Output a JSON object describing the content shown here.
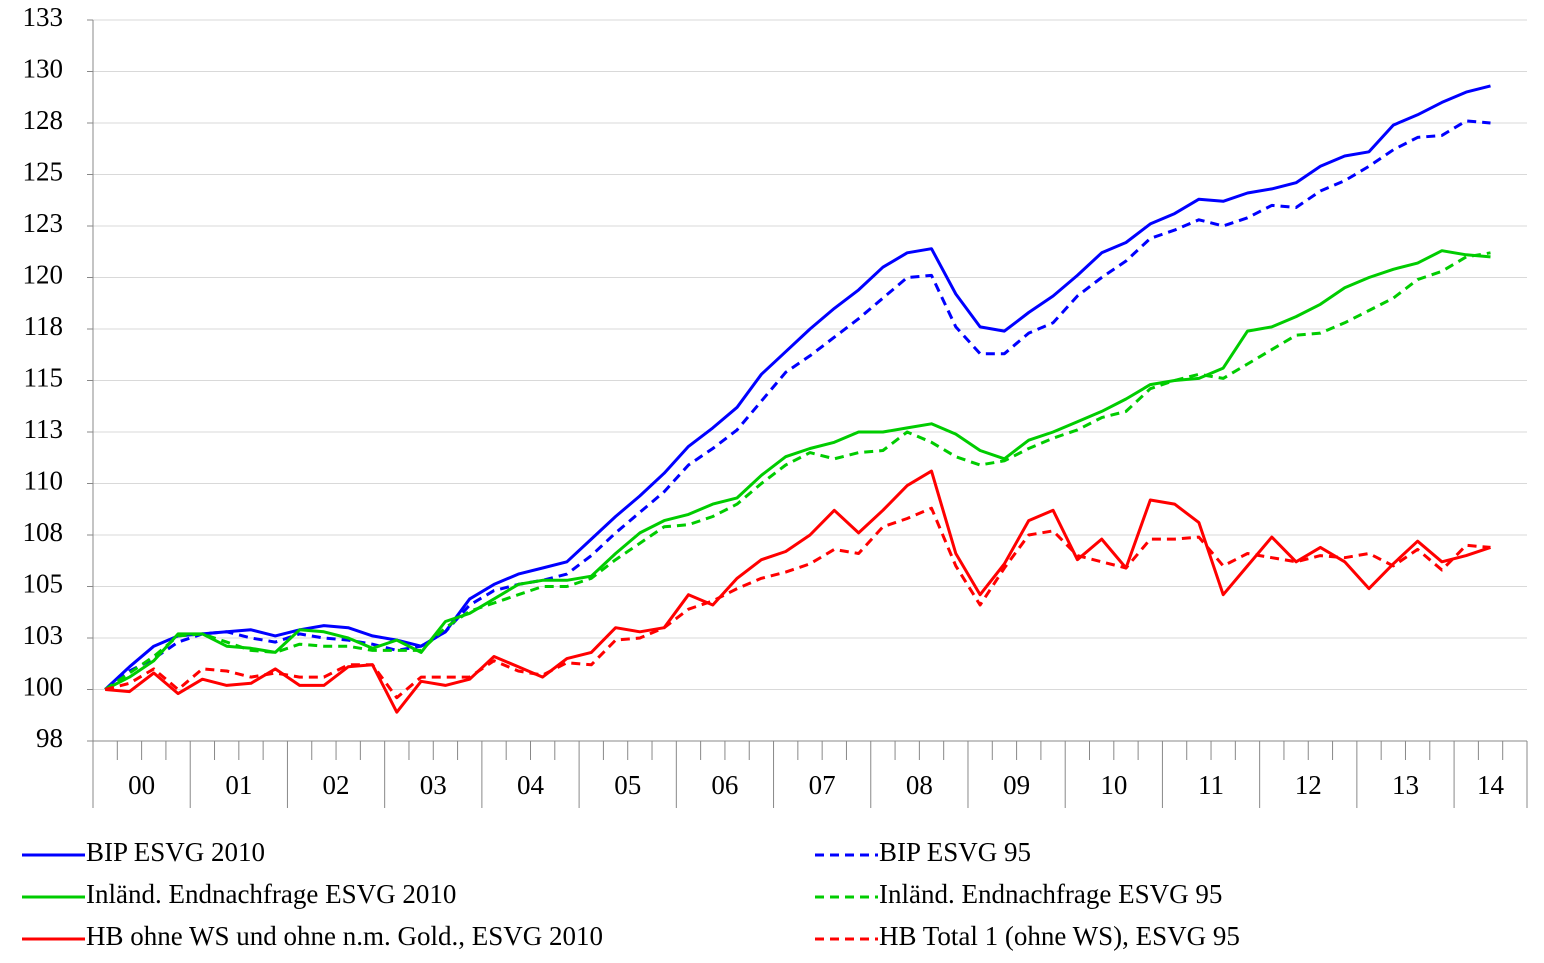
{
  "chart_data": {
    "type": "line",
    "categories": [
      null,
      "00",
      null,
      null,
      null,
      "01",
      null,
      null,
      null,
      "02",
      null,
      null,
      null,
      "03",
      null,
      null,
      null,
      "04",
      null,
      null,
      null,
      "05",
      null,
      null,
      null,
      "06",
      null,
      null,
      null,
      "07",
      null,
      null,
      null,
      "08",
      null,
      null,
      null,
      "09",
      null,
      null,
      null,
      "10",
      null,
      null,
      null,
      "11",
      null,
      null,
      null,
      "12",
      null,
      null,
      null,
      "13",
      null,
      null,
      null,
      "14",
      null
    ],
    "series": [
      {
        "name": "BIP ESVG 2010",
        "color": "#0000ff",
        "line_style": "solid",
        "values": [
          100,
          101.1,
          102.1,
          102.6,
          102.7,
          102.8,
          102.9,
          102.6,
          102.9,
          103.1,
          103.0,
          102.6,
          102.4,
          102.1,
          102.8,
          104.4,
          105.1,
          105.6,
          105.9,
          106.2,
          107.3,
          108.4,
          109.4,
          110.5,
          111.8,
          112.7,
          113.7,
          115.3,
          116.4,
          117.5,
          118.5,
          119.4,
          120.5,
          121.2,
          121.4,
          119.2,
          117.6,
          117.4,
          118.3,
          119.1,
          120.1,
          121.2,
          121.7,
          122.6,
          123.1,
          123.8,
          123.7,
          124.1,
          124.3,
          124.6,
          125.4,
          125.9,
          126.1,
          127.4,
          127.9,
          128.5,
          129.0,
          129.3,
          null
        ]
      },
      {
        "name": "BIP ESVG 95",
        "color": "#0000ff",
        "line_style": "dashed",
        "values": [
          100,
          100.9,
          101.5,
          102.3,
          102.7,
          102.8,
          102.5,
          102.3,
          102.7,
          102.5,
          102.4,
          102.2,
          101.9,
          102.1,
          102.8,
          104.1,
          104.8,
          105.1,
          105.3,
          105.6,
          106.5,
          107.6,
          108.6,
          109.6,
          110.9,
          111.7,
          112.6,
          114.0,
          115.4,
          116.2,
          117.1,
          118.0,
          119.0,
          120.0,
          120.1,
          117.6,
          116.3,
          116.3,
          117.3,
          117.8,
          119.1,
          120.0,
          120.8,
          121.9,
          122.3,
          122.8,
          122.5,
          122.9,
          123.5,
          123.4,
          124.2,
          124.7,
          125.4,
          126.2,
          126.8,
          126.9,
          127.6,
          127.5,
          null
        ]
      },
      {
        "name": "Inländ. Endnachfrage ESVG 2010",
        "color": "#00cc00",
        "line_style": "solid",
        "values": [
          100,
          100.6,
          101.4,
          102.7,
          102.7,
          102.1,
          102.0,
          101.8,
          102.9,
          102.8,
          102.5,
          102.0,
          102.4,
          101.8,
          103.3,
          103.7,
          104.4,
          105.1,
          105.3,
          105.3,
          105.5,
          106.6,
          107.6,
          108.2,
          108.5,
          109.0,
          109.3,
          110.4,
          111.3,
          111.7,
          112.0,
          112.5,
          112.5,
          112.7,
          112.9,
          112.4,
          111.6,
          111.2,
          112.1,
          112.5,
          113.0,
          113.5,
          114.1,
          114.8,
          115.0,
          115.1,
          115.6,
          117.4,
          117.6,
          118.1,
          118.7,
          119.5,
          120.0,
          120.4,
          120.7,
          121.3,
          121.1,
          121.0,
          null
        ]
      },
      {
        "name": "Inländ. Endnachfrage ESVG 95",
        "color": "#00cc00",
        "line_style": "dashed",
        "values": [
          100,
          100.8,
          101.6,
          102.6,
          102.7,
          102.3,
          101.9,
          101.8,
          102.2,
          102.1,
          102.1,
          101.9,
          101.9,
          101.9,
          103.0,
          103.8,
          104.2,
          104.6,
          105.0,
          105.0,
          105.4,
          106.3,
          107.1,
          107.9,
          108.0,
          108.4,
          109.0,
          110.0,
          110.9,
          111.5,
          111.2,
          111.5,
          111.6,
          112.5,
          112.0,
          111.3,
          110.9,
          111.1,
          111.7,
          112.2,
          112.6,
          113.2,
          113.5,
          114.6,
          115.0,
          115.3,
          115.1,
          115.8,
          116.5,
          117.2,
          117.3,
          117.8,
          118.4,
          119.0,
          119.9,
          120.3,
          121.0,
          121.2,
          null
        ]
      },
      {
        "name": "HB ohne WS und ohne n.m. Gold., ESVG 2010",
        "color": "#ff0000",
        "line_style": "solid",
        "values": [
          100,
          99.9,
          100.8,
          99.8,
          100.5,
          100.2,
          100.3,
          101.0,
          100.2,
          100.2,
          101.1,
          101.2,
          98.9,
          100.4,
          100.2,
          100.5,
          101.6,
          101.1,
          100.6,
          101.5,
          101.8,
          103.0,
          102.8,
          103.0,
          104.6,
          104.1,
          105.4,
          106.3,
          106.7,
          107.5,
          108.7,
          107.6,
          108.7,
          109.9,
          110.6,
          106.6,
          104.6,
          106.1,
          108.2,
          108.7,
          106.3,
          107.3,
          105.9,
          109.2,
          109.0,
          108.1,
          104.6,
          106.0,
          107.4,
          106.2,
          106.9,
          106.2,
          104.9,
          106.1,
          107.2,
          106.2,
          106.5,
          106.9,
          null
        ]
      },
      {
        "name": "HB Total 1 (ohne WS), ESVG 95",
        "color": "#ff0000",
        "line_style": "dashed",
        "values": [
          100,
          100.3,
          101.0,
          100.0,
          101.0,
          100.9,
          100.6,
          100.8,
          100.6,
          100.6,
          101.2,
          101.2,
          99.6,
          100.6,
          100.6,
          100.6,
          101.4,
          100.9,
          100.7,
          101.3,
          101.2,
          102.4,
          102.5,
          103.0,
          103.9,
          104.3,
          104.9,
          105.4,
          105.7,
          106.1,
          106.8,
          106.6,
          107.9,
          108.3,
          108.8,
          106.0,
          104.1,
          105.9,
          107.5,
          107.7,
          106.5,
          106.2,
          105.9,
          107.3,
          107.3,
          107.4,
          106.0,
          106.6,
          106.4,
          106.2,
          106.5,
          106.4,
          106.6,
          106.0,
          106.8,
          105.8,
          107.0,
          106.9,
          null
        ]
      }
    ],
    "ylim": [
      97.5,
      132.5
    ],
    "yticks": [
      {
        "value": 97.5,
        "label": "98"
      },
      100,
      {
        "value": 102.5,
        "label": "103"
      },
      105,
      {
        "value": 107.5,
        "label": "108"
      },
      110,
      {
        "value": 112.5,
        "label": "113"
      },
      115,
      {
        "value": 117.5,
        "label": "118"
      },
      120,
      {
        "value": 122.5,
        "label": "123"
      },
      125,
      {
        "value": 127.5,
        "label": "128"
      },
      130,
      {
        "value": 132.5,
        "label": "133"
      }
    ],
    "grid": true,
    "legend": "bottom"
  }
}
